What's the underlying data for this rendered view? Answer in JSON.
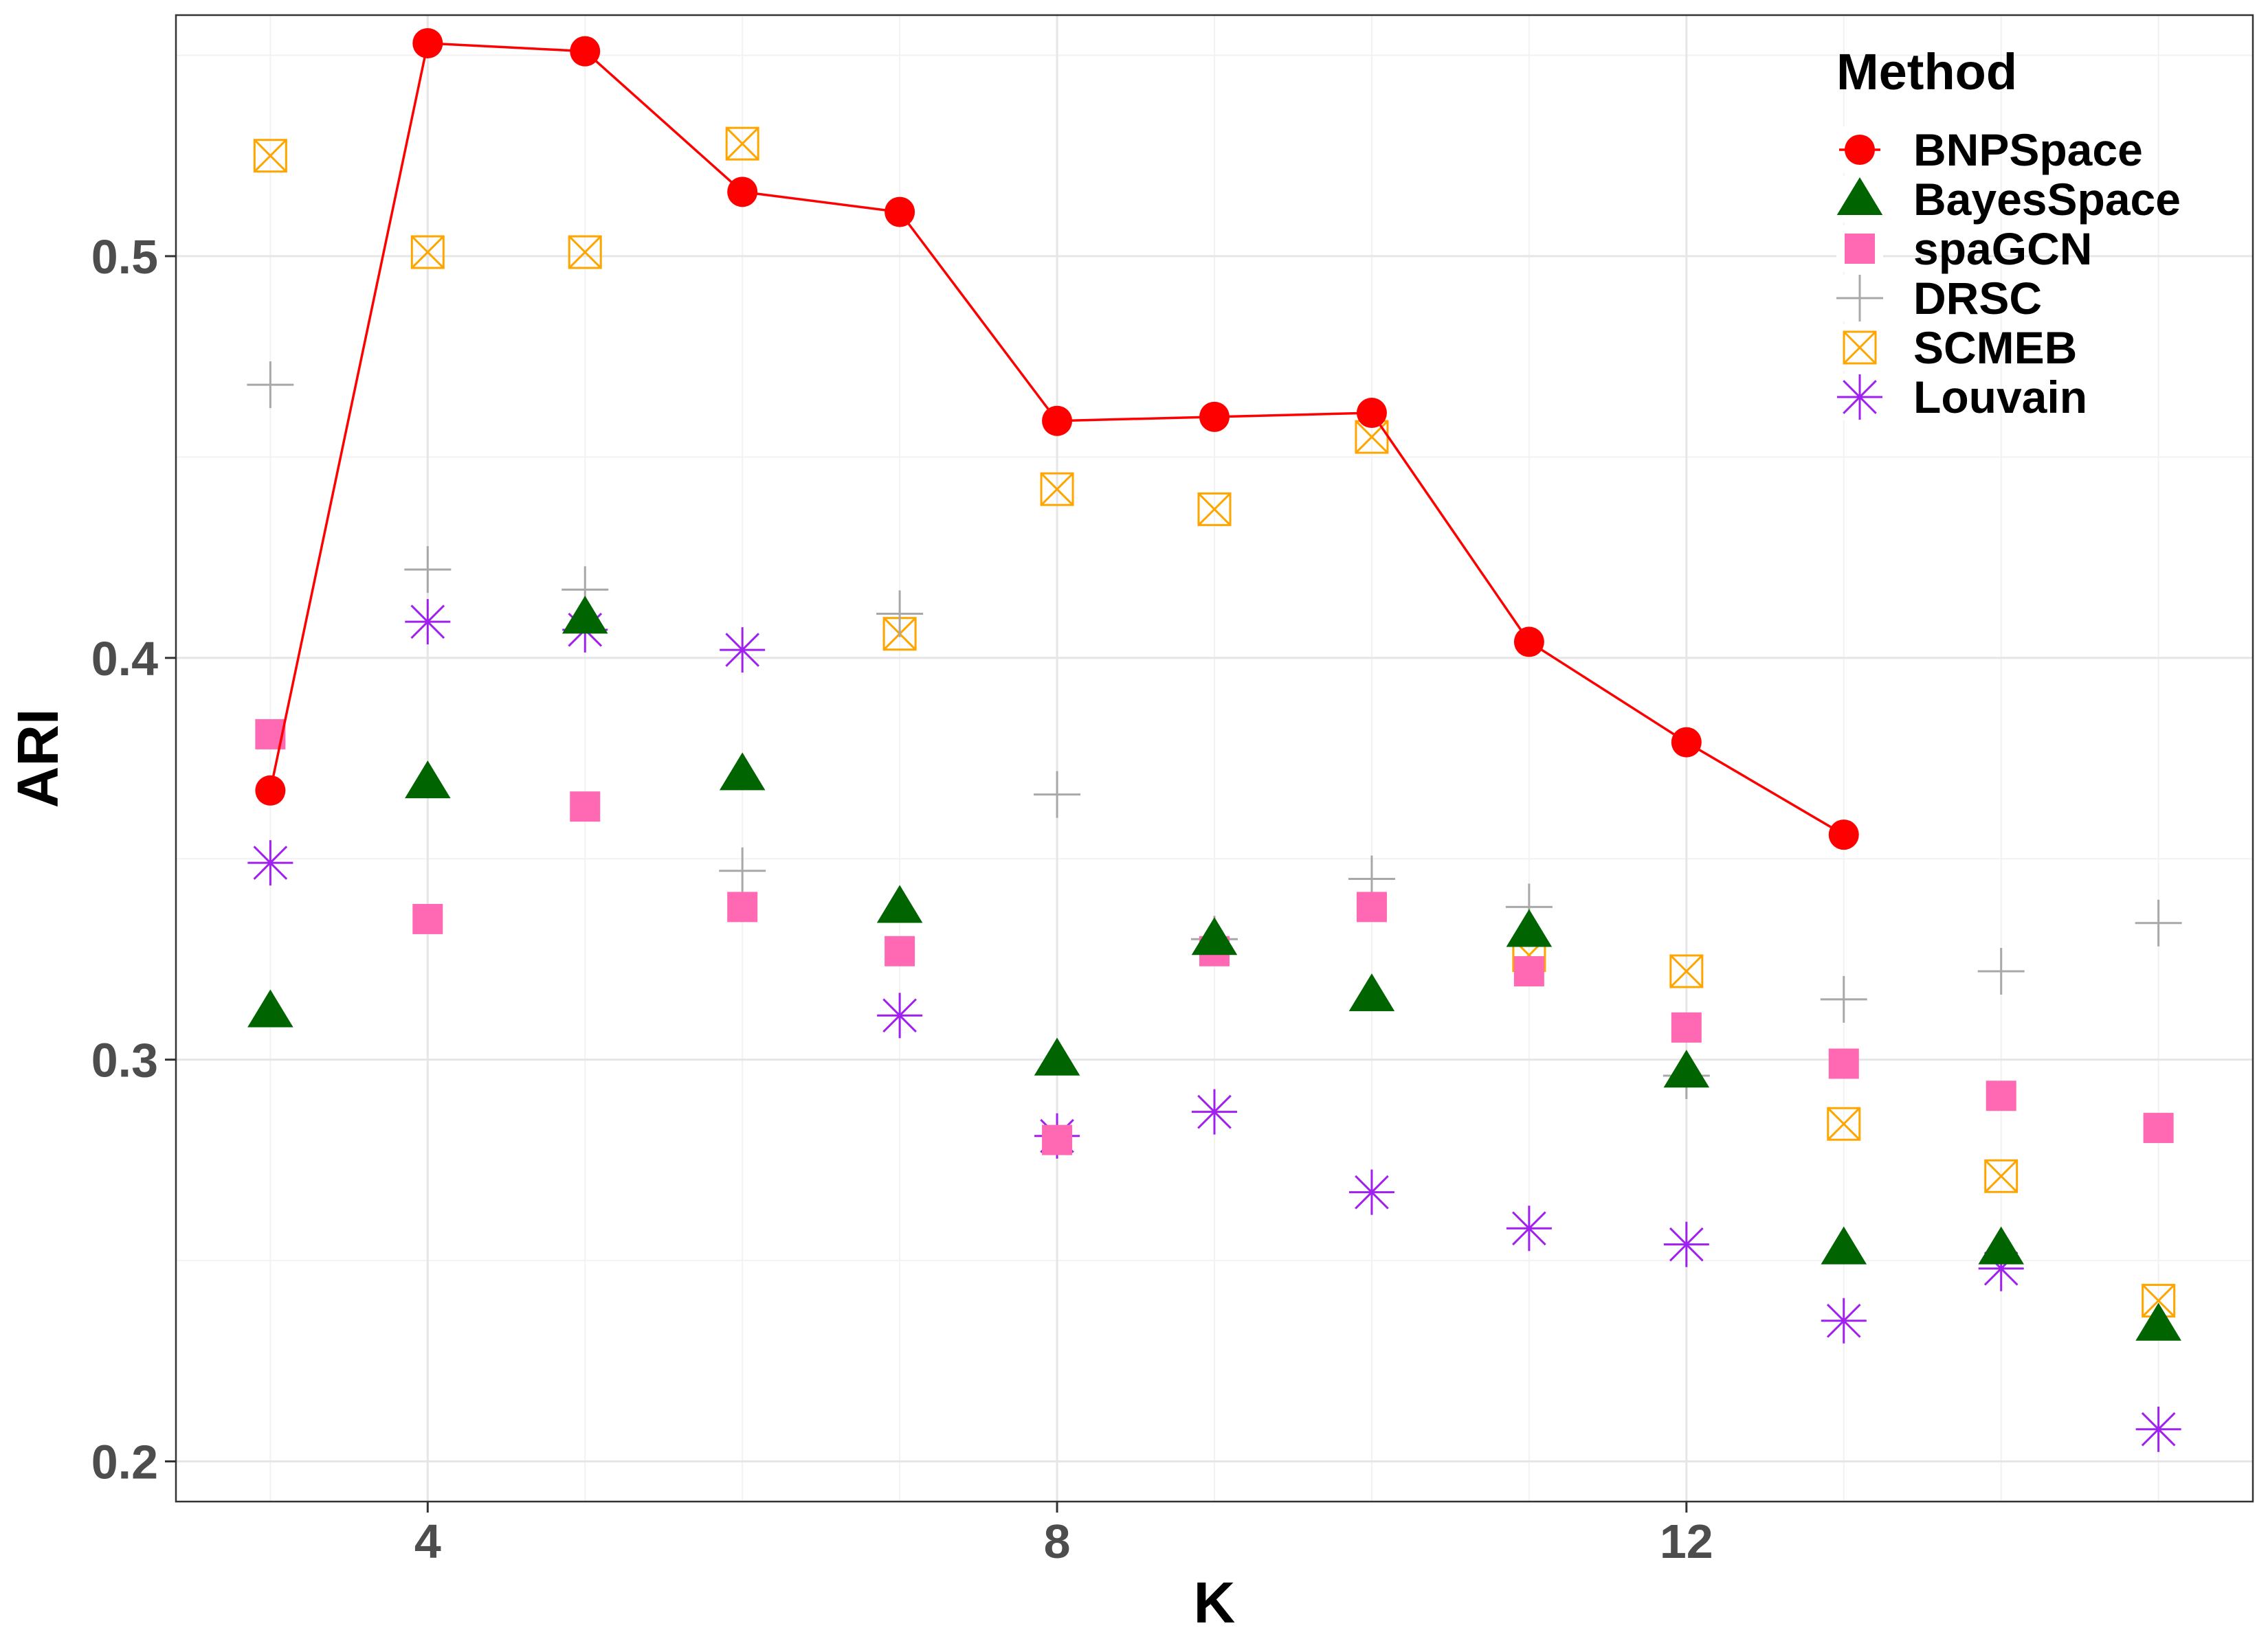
{
  "chart_data": {
    "type": "scatter",
    "xlabel": "K",
    "ylabel": "ARI",
    "xlim": [
      2.4,
      15.6
    ],
    "ylim": [
      0.19,
      0.56
    ],
    "x_ticks": [
      4,
      8,
      12
    ],
    "x_tick_labels": [
      "4",
      "8",
      "12"
    ],
    "y_ticks": [
      0.2,
      0.3,
      0.4,
      0.5
    ],
    "y_tick_labels": [
      "0.2",
      "0.3",
      "0.4",
      "0.5"
    ],
    "grid": true,
    "legend": {
      "title": "Method",
      "position": "top-right"
    },
    "series": [
      {
        "name": "BNPSpace",
        "marker": "circle",
        "line": true,
        "color": "#ff0000",
        "x": [
          3,
          4,
          5,
          6,
          7,
          8,
          9,
          10,
          11,
          12,
          13
        ],
        "values": [
          0.367,
          0.553,
          0.551,
          0.516,
          0.511,
          0.459,
          0.46,
          0.461,
          0.404,
          0.379,
          0.356
        ]
      },
      {
        "name": "BayesSpace",
        "marker": "triangle",
        "line": false,
        "color": "#006400",
        "x": [
          3,
          4,
          5,
          6,
          7,
          8,
          9,
          10,
          11,
          12,
          13,
          14,
          15
        ],
        "values": [
          0.312,
          0.369,
          0.41,
          0.371,
          0.338,
          0.3,
          0.33,
          0.316,
          0.332,
          0.297,
          0.253,
          0.253,
          0.234
        ]
      },
      {
        "name": "spaGCN",
        "marker": "square",
        "line": false,
        "color": "#ff69b4",
        "x": [
          3,
          4,
          5,
          6,
          7,
          8,
          9,
          10,
          11,
          12,
          13,
          14,
          15
        ],
        "values": [
          0.381,
          0.335,
          0.363,
          0.338,
          0.327,
          0.28,
          0.327,
          0.338,
          0.322,
          0.308,
          0.299,
          0.291,
          0.283
        ]
      },
      {
        "name": "DRSC",
        "marker": "plus",
        "line": false,
        "color": "#a8a8a8",
        "x": [
          3,
          4,
          5,
          6,
          7,
          8,
          9,
          10,
          11,
          12,
          13,
          14,
          15
        ],
        "values": [
          0.468,
          0.422,
          0.417,
          0.347,
          0.411,
          0.366,
          0.33,
          0.345,
          0.338,
          0.296,
          0.315,
          0.322,
          0.334
        ]
      },
      {
        "name": "SCMEB",
        "marker": "boxed-x",
        "line": false,
        "color": "#ffa500",
        "x": [
          3,
          4,
          5,
          6,
          7,
          8,
          9,
          10,
          11,
          12,
          13,
          14,
          15
        ],
        "values": [
          0.525,
          0.501,
          0.501,
          0.528,
          0.406,
          0.442,
          0.437,
          0.455,
          0.326,
          0.322,
          0.284,
          0.271,
          0.24
        ]
      },
      {
        "name": "Louvain",
        "marker": "asterisk",
        "line": false,
        "color": "#a020f0",
        "x": [
          3,
          4,
          5,
          6,
          7,
          8,
          9,
          10,
          11,
          12,
          13,
          14,
          15
        ],
        "values": [
          0.349,
          0.409,
          0.407,
          0.402,
          0.311,
          0.281,
          0.287,
          0.267,
          0.258,
          0.254,
          0.235,
          0.248,
          0.208
        ]
      }
    ]
  }
}
